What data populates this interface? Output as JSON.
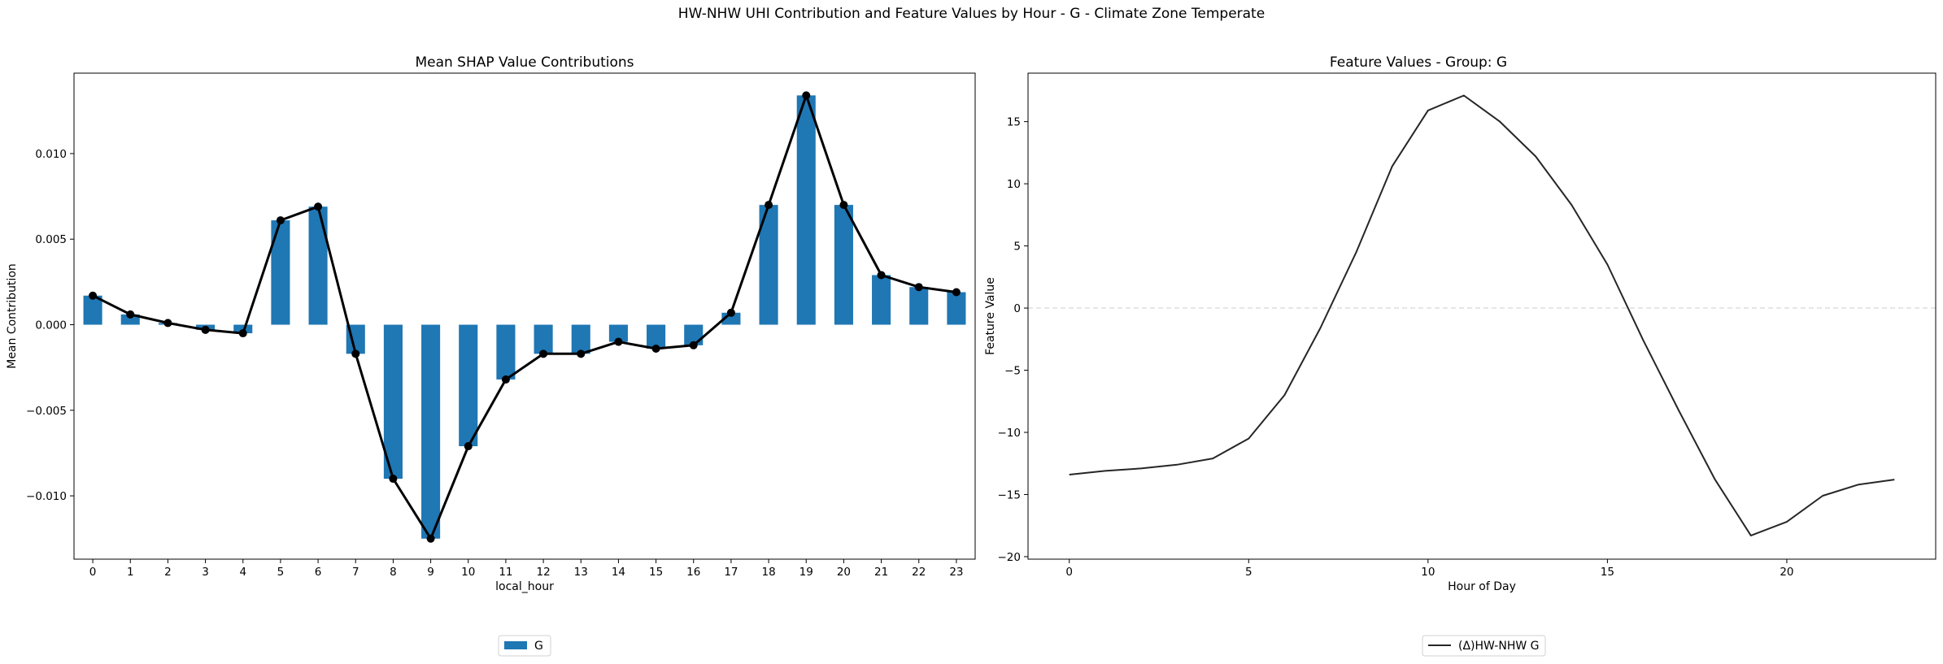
{
  "suptitle": "HW-NHW UHI Contribution and Feature Values by Hour - G - Climate Zone Temperate",
  "colors": {
    "bar": "#1f77b4",
    "line": "#000000",
    "feature_line": "#262626",
    "zero_line": "#cccccc"
  },
  "chart_data": [
    {
      "type": "bar",
      "title": "Mean SHAP Value Contributions",
      "xlabel": "local_hour",
      "ylabel": "Mean Contribution",
      "categories": [
        "0",
        "1",
        "2",
        "3",
        "4",
        "5",
        "6",
        "7",
        "8",
        "9",
        "10",
        "11",
        "12",
        "13",
        "14",
        "15",
        "16",
        "17",
        "18",
        "19",
        "20",
        "21",
        "22",
        "23"
      ],
      "series": [
        {
          "name": "G",
          "values": [
            0.0017,
            0.0006,
            0.0001,
            -0.0003,
            -0.0005,
            0.0061,
            0.0069,
            -0.0017,
            -0.009,
            -0.0125,
            -0.0071,
            -0.0032,
            -0.0017,
            -0.0017,
            -0.001,
            -0.0014,
            -0.0012,
            0.0007,
            0.007,
            0.0134,
            0.007,
            0.0029,
            0.0022,
            0.0019
          ]
        }
      ],
      "overlay_line_values": [
        0.0017,
        0.0006,
        0.0001,
        -0.0003,
        -0.0005,
        0.0061,
        0.0069,
        -0.0017,
        -0.009,
        -0.0125,
        -0.0071,
        -0.0032,
        -0.0017,
        -0.0017,
        -0.001,
        -0.0014,
        -0.0012,
        0.0007,
        0.007,
        0.0134,
        0.007,
        0.0029,
        0.0022,
        0.0019
      ],
      "ylim": [
        -0.0137,
        0.0147
      ],
      "yticks": [
        -0.01,
        -0.005,
        0.0,
        0.005,
        0.01
      ],
      "ytick_labels": [
        "−0.010",
        "−0.005",
        "0.000",
        "0.005",
        "0.010"
      ],
      "legend": {
        "placement": "below-center",
        "label": "G"
      }
    },
    {
      "type": "line",
      "title": "Feature Values - Group: G",
      "xlabel": "Hour of Day",
      "ylabel": "Feature Value",
      "x": [
        0,
        1,
        2,
        3,
        4,
        5,
        6,
        7,
        8,
        9,
        10,
        11,
        12,
        13,
        14,
        15,
        16,
        17,
        18,
        19,
        20,
        21,
        22,
        23
      ],
      "series": [
        {
          "name": "(Δ)HW-NHW G",
          "values": [
            -13.4,
            -13.1,
            -12.9,
            -12.6,
            -12.1,
            -10.5,
            -7.0,
            -1.6,
            4.5,
            11.4,
            15.9,
            17.1,
            15.0,
            12.2,
            8.3,
            3.5,
            -2.6,
            -8.3,
            -13.8,
            -18.3,
            -17.2,
            -15.1,
            -14.2,
            -13.8
          ]
        }
      ],
      "xlim": [
        -1.15,
        24.15
      ],
      "ylim": [
        -20.2,
        18.9
      ],
      "xticks": [
        0,
        5,
        10,
        15,
        20
      ],
      "xtick_labels": [
        "0",
        "5",
        "10",
        "15",
        "20"
      ],
      "yticks": [
        -20,
        -15,
        -10,
        -5,
        0,
        5,
        10,
        15
      ],
      "ytick_labels": [
        "−20",
        "−15",
        "−10",
        "−5",
        "0",
        "5",
        "10",
        "15"
      ],
      "reference_line_y": 0,
      "grid": false,
      "legend": {
        "placement": "below-center",
        "label": "(Δ)HW-NHW G"
      }
    }
  ]
}
